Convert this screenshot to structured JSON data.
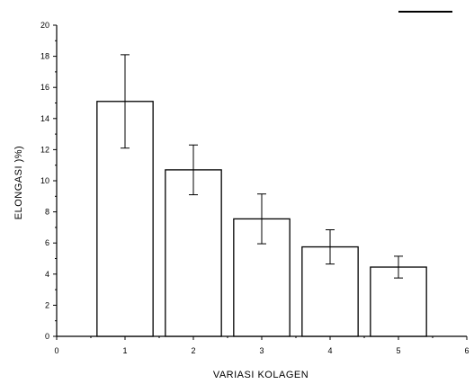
{
  "chart_data": {
    "type": "bar",
    "title": "",
    "xlabel": "VARIASI KOLAGEN",
    "ylabel": "ELONGASI )%)",
    "x_ticks": [
      "0",
      "1",
      "2",
      "3",
      "4",
      "5",
      "6"
    ],
    "y_ticks": [
      "0",
      "2",
      "4",
      "6",
      "8",
      "10",
      "12",
      "14",
      "16",
      "18",
      "20"
    ],
    "xlim": [
      0,
      6
    ],
    "ylim": [
      0,
      20
    ],
    "grid": false,
    "legend": "top-right",
    "series": [
      {
        "x": [
          1,
          2,
          3,
          4,
          5
        ],
        "values": [
          15.1,
          10.7,
          7.55,
          5.75,
          4.45
        ],
        "error": [
          3.0,
          1.6,
          1.6,
          1.1,
          0.7
        ],
        "bar_fill": "#ffffff",
        "bar_stroke": "#000000"
      }
    ]
  }
}
